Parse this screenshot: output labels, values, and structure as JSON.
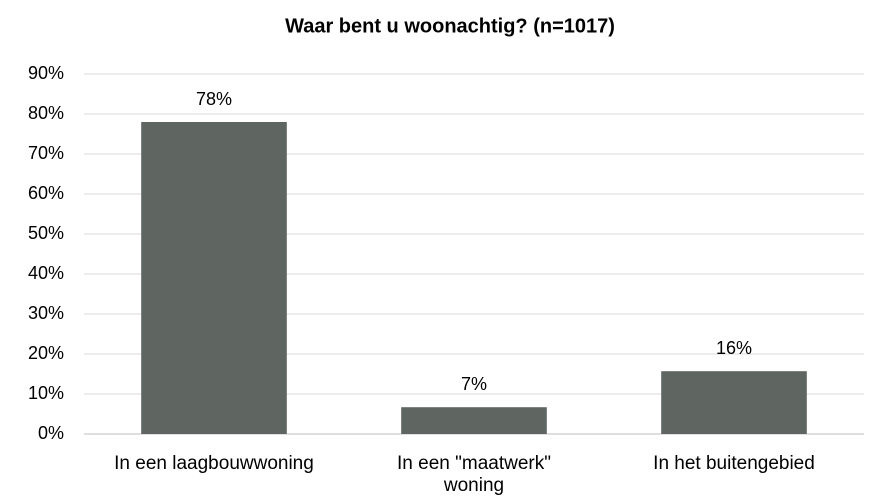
{
  "chart_data": {
    "type": "bar",
    "title": "Waar bent u woonachtig? (n=1017)",
    "categories": [
      "In een laagbouwwoning",
      "In een \"maatwerk\" woning",
      "In het buitengebied"
    ],
    "values": [
      78,
      6.7,
      15.7
    ],
    "value_labels": [
      "78%",
      "7%",
      "16%"
    ],
    "color": "#5f6662",
    "ylim": [
      0,
      90
    ],
    "yticks": [
      {
        "value": 0,
        "label": "0%"
      },
      {
        "value": 10,
        "label": "10%"
      },
      {
        "value": 20,
        "label": "20%"
      },
      {
        "value": 30,
        "label": "30%"
      },
      {
        "value": 40,
        "label": "40%"
      },
      {
        "value": 50,
        "label": "50%"
      },
      {
        "value": 60,
        "label": "60%"
      },
      {
        "value": 70,
        "label": "70%"
      },
      {
        "value": 80,
        "label": "80%"
      },
      {
        "value": 90,
        "label": "90%"
      }
    ],
    "grid": true
  }
}
